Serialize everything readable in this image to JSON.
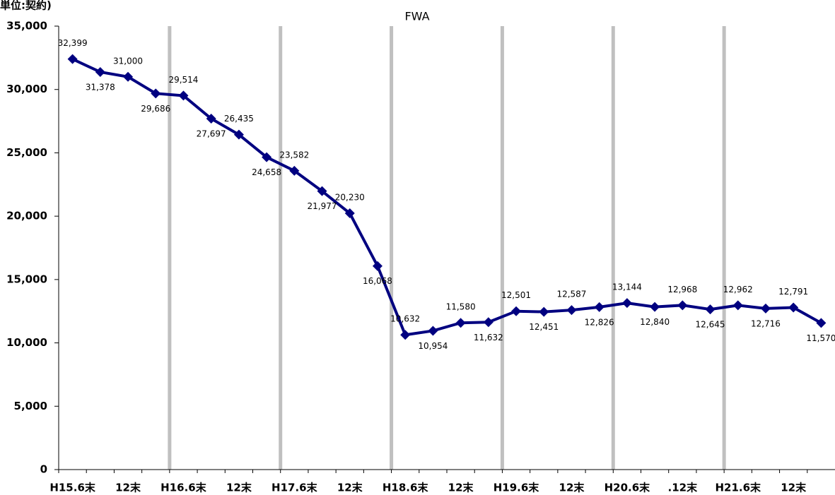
{
  "chart_data": {
    "type": "line",
    "title": "FWA",
    "y_label": "単位:契約)",
    "categories": [
      "H15.6末",
      null,
      "12末",
      null,
      "H16.6末",
      null,
      "12末",
      null,
      "H17.6末",
      null,
      "12末",
      null,
      "H18.6末",
      null,
      "12末",
      null,
      "H19.6末",
      null,
      "12末",
      null,
      "H20.6末",
      null,
      ".12末",
      null,
      "H21.6末",
      null,
      "12末",
      null
    ],
    "series": [
      {
        "name": "FWA",
        "color": "#000080",
        "values": [
          32399,
          31378,
          31000,
          29686,
          29514,
          27697,
          26435,
          24658,
          23582,
          21977,
          20230,
          16068,
          10632,
          10954,
          11580,
          11632,
          12501,
          12451,
          12587,
          12826,
          13144,
          12840,
          12968,
          12645,
          12962,
          12716,
          12791,
          11570
        ],
        "value_labels": [
          "32,399",
          "31,378",
          "31,000",
          "29,686",
          "29,514",
          "27,697",
          "26,435",
          "24,658",
          "23,582",
          "21,977",
          "20,230",
          "16,068",
          "10,632",
          "10,954",
          "11,580",
          "11,632",
          "12,501",
          "12,451",
          "12,587",
          "12,826",
          "13,144",
          "12,840",
          "12,968",
          "12,645",
          "12,962",
          "12,716",
          "12,791",
          "11,570"
        ]
      }
    ],
    "ylim": [
      0,
      35000
    ],
    "yticks": [
      {
        "value": 0,
        "label": "0"
      },
      {
        "value": 5000,
        "label": "5,000"
      },
      {
        "value": 10000,
        "label": "10,000"
      },
      {
        "value": 15000,
        "label": "15,000"
      },
      {
        "value": 20000,
        "label": "20,000"
      },
      {
        "value": 25000,
        "label": "25,000"
      },
      {
        "value": 30000,
        "label": "30,000"
      },
      {
        "value": 35000,
        "label": "35,000"
      }
    ]
  }
}
